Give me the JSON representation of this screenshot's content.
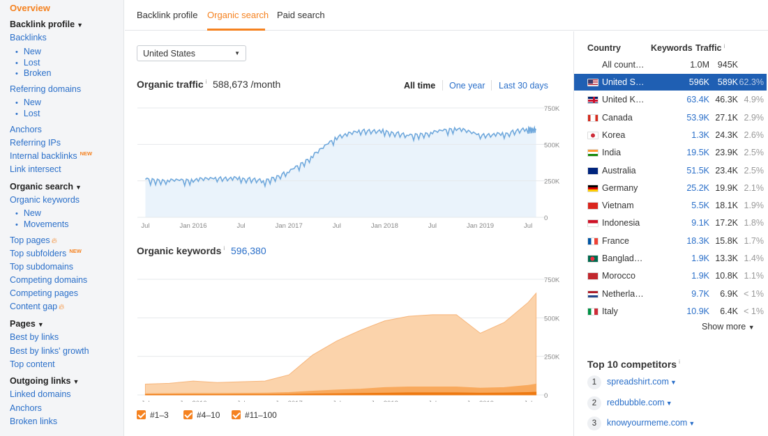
{
  "sidebar": {
    "overview": "Overview",
    "backlink_profile": "Backlink profile",
    "backlinks": "Backlinks",
    "backlinks_sub": [
      "New",
      "Lost",
      "Broken"
    ],
    "referring_domains": "Referring domains",
    "referring_domains_sub": [
      "New",
      "Lost"
    ],
    "anchors": "Anchors",
    "referring_ips": "Referring IPs",
    "internal_backlinks": "Internal backlinks",
    "new_badge": "NEW",
    "link_intersect": "Link intersect",
    "organic_search": "Organic search",
    "organic_keywords": "Organic keywords",
    "organic_keywords_sub": [
      "New",
      "Movements"
    ],
    "top_pages": "Top pages",
    "top_subfolders": "Top subfolders",
    "top_subdomains": "Top subdomains",
    "competing_domains": "Competing domains",
    "competing_pages": "Competing pages",
    "content_gap": "Content gap",
    "pages": "Pages",
    "best_by_links": "Best by links",
    "best_by_links_growth": "Best by links' growth",
    "top_content": "Top content",
    "outgoing_links": "Outgoing links",
    "linked_domains": "Linked domains",
    "outgoing_anchors": "Anchors",
    "broken_links": "Broken links"
  },
  "tabs": {
    "backlink_profile": "Backlink profile",
    "organic_search": "Organic search",
    "paid_search": "Paid search"
  },
  "country_select": {
    "value": "United States"
  },
  "traffic": {
    "title": "Organic traffic",
    "value": "588,673 /month",
    "ranges": [
      "All time",
      "One year",
      "Last 30 days"
    ]
  },
  "keywords": {
    "title": "Organic keywords",
    "value": "596,380"
  },
  "legend": [
    "#1–3",
    "#4–10",
    "#11–100"
  ],
  "chart_data": [
    {
      "type": "line",
      "title": "Organic traffic",
      "x": [
        "2015-07",
        "2015-10",
        "2016-01",
        "2016-04",
        "2016-07",
        "2016-10",
        "2017-01",
        "2017-04",
        "2017-07",
        "2017-10",
        "2018-01",
        "2018-04",
        "2018-07",
        "2018-10",
        "2019-01",
        "2019-04",
        "2019-07",
        "2019-08"
      ],
      "series": [
        {
          "values": [
            260000,
            250000,
            255000,
            265000,
            265000,
            250000,
            310000,
            420000,
            550000,
            590000,
            590000,
            560000,
            580000,
            610000,
            560000,
            570000,
            610000,
            600000
          ]
        }
      ],
      "ylim": [
        0,
        750000
      ],
      "y_ticks": [
        "0",
        "250K",
        "500K",
        "750K"
      ],
      "x_ticks": [
        "Jul",
        "Jan 2016",
        "Jul",
        "Jan 2017",
        "Jul",
        "Jan 2018",
        "Jul",
        "Jan 2019",
        "Jul"
      ],
      "color": "#6fa8dc"
    },
    {
      "type": "area",
      "title": "Organic keywords",
      "x": [
        "2015-07",
        "2015-10",
        "2016-01",
        "2016-04",
        "2016-07",
        "2016-10",
        "2017-01",
        "2017-04",
        "2017-07",
        "2017-10",
        "2018-01",
        "2018-04",
        "2018-07",
        "2018-10",
        "2019-01",
        "2019-04",
        "2019-07",
        "2019-08"
      ],
      "series": [
        {
          "name": "#11–100",
          "values": [
            70000,
            75000,
            90000,
            80000,
            85000,
            90000,
            130000,
            260000,
            350000,
            420000,
            480000,
            510000,
            520000,
            520000,
            400000,
            470000,
            600000,
            660000
          ]
        },
        {
          "name": "#4–10",
          "values": [
            8000,
            9000,
            10000,
            10000,
            11000,
            12000,
            16000,
            25000,
            32000,
            38000,
            48000,
            52000,
            52000,
            52000,
            44000,
            48000,
            62000,
            70000
          ]
        },
        {
          "name": "#1–3",
          "values": [
            2000,
            2000,
            2500,
            2500,
            3000,
            3000,
            4000,
            6000,
            8000,
            10000,
            12000,
            14000,
            14000,
            14000,
            12000,
            13000,
            16000,
            18000
          ]
        }
      ],
      "ylim": [
        0,
        750000
      ],
      "y_ticks": [
        "0",
        "250K",
        "500K",
        "750K"
      ],
      "x_ticks": [
        "Jul",
        "Jan 2016",
        "Jul",
        "Jan 2017",
        "Jul",
        "Jan 2018",
        "Jul",
        "Jan 2019",
        "Jul"
      ],
      "colors": [
        "#fbd3ab",
        "#f8a95d",
        "#ee7a12"
      ]
    }
  ],
  "country_table": {
    "headers": [
      "Country",
      "Keywords",
      "Traffic"
    ],
    "all_row": {
      "name": "All count…",
      "keywords": "1.0M",
      "traffic": "945K"
    },
    "rows": [
      {
        "flag": "us",
        "name": "United S…",
        "keywords": "596K",
        "traffic": "589K",
        "pct": "62.3%"
      },
      {
        "flag": "uk",
        "name": "United K…",
        "keywords": "63.4K",
        "traffic": "46.3K",
        "pct": "4.9%"
      },
      {
        "flag": "ca",
        "name": "Canada",
        "keywords": "53.9K",
        "traffic": "27.1K",
        "pct": "2.9%"
      },
      {
        "flag": "kr",
        "name": "Korea",
        "keywords": "1.3K",
        "traffic": "24.3K",
        "pct": "2.6%"
      },
      {
        "flag": "in",
        "name": "India",
        "keywords": "19.5K",
        "traffic": "23.9K",
        "pct": "2.5%"
      },
      {
        "flag": "au",
        "name": "Australia",
        "keywords": "51.5K",
        "traffic": "23.4K",
        "pct": "2.5%"
      },
      {
        "flag": "de",
        "name": "Germany",
        "keywords": "25.2K",
        "traffic": "19.9K",
        "pct": "2.1%"
      },
      {
        "flag": "vn",
        "name": "Vietnam",
        "keywords": "5.5K",
        "traffic": "18.1K",
        "pct": "1.9%"
      },
      {
        "flag": "id",
        "name": "Indonesia",
        "keywords": "9.1K",
        "traffic": "17.2K",
        "pct": "1.8%"
      },
      {
        "flag": "fr",
        "name": "France",
        "keywords": "18.3K",
        "traffic": "15.8K",
        "pct": "1.7%"
      },
      {
        "flag": "bd",
        "name": "Banglad…",
        "keywords": "1.9K",
        "traffic": "13.3K",
        "pct": "1.4%"
      },
      {
        "flag": "ma",
        "name": "Morocco",
        "keywords": "1.9K",
        "traffic": "10.8K",
        "pct": "1.1%"
      },
      {
        "flag": "nl",
        "name": "Netherla…",
        "keywords": "9.7K",
        "traffic": "6.9K",
        "pct": "< 1%"
      },
      {
        "flag": "it",
        "name": "Italy",
        "keywords": "10.9K",
        "traffic": "6.4K",
        "pct": "< 1%"
      }
    ],
    "show_more": "Show more"
  },
  "competitors": {
    "title": "Top 10 competitors",
    "items": [
      {
        "rank": "1",
        "domain": "spreadshirt.com"
      },
      {
        "rank": "2",
        "domain": "redbubble.com"
      },
      {
        "rank": "3",
        "domain": "knowyourmeme.com"
      }
    ]
  }
}
